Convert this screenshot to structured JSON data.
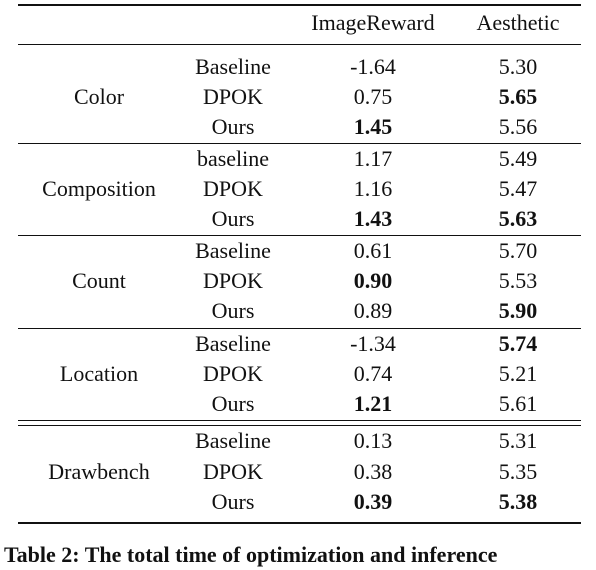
{
  "table": {
    "headers": [
      "",
      "",
      "ImageReward",
      "Aesthetic"
    ],
    "groups": [
      {
        "category": "Color",
        "rows": [
          {
            "method": "Baseline",
            "imagereward": "-1.64",
            "aesthetic": "5.30",
            "bold": []
          },
          {
            "method": "DPOK",
            "imagereward": "0.75",
            "aesthetic": "5.65",
            "bold": [
              "aesthetic"
            ]
          },
          {
            "method": "Ours",
            "imagereward": "1.45",
            "aesthetic": "5.56",
            "bold": [
              "imagereward"
            ]
          }
        ]
      },
      {
        "category": "Composition",
        "rows": [
          {
            "method": "baseline",
            "imagereward": "1.17",
            "aesthetic": "5.49",
            "bold": []
          },
          {
            "method": "DPOK",
            "imagereward": "1.16",
            "aesthetic": "5.47",
            "bold": []
          },
          {
            "method": "Ours",
            "imagereward": "1.43",
            "aesthetic": "5.63",
            "bold": [
              "imagereward",
              "aesthetic"
            ]
          }
        ]
      },
      {
        "category": "Count",
        "rows": [
          {
            "method": "Baseline",
            "imagereward": "0.61",
            "aesthetic": "5.70",
            "bold": []
          },
          {
            "method": "DPOK",
            "imagereward": "0.90",
            "aesthetic": "5.53",
            "bold": [
              "imagereward"
            ]
          },
          {
            "method": "Ours",
            "imagereward": "0.89",
            "aesthetic": "5.90",
            "bold": [
              "aesthetic"
            ]
          }
        ]
      },
      {
        "category": "Location",
        "rows": [
          {
            "method": "Baseline",
            "imagereward": "-1.34",
            "aesthetic": "5.74",
            "bold": [
              "aesthetic"
            ]
          },
          {
            "method": "DPOK",
            "imagereward": "0.74",
            "aesthetic": "5.21",
            "bold": []
          },
          {
            "method": "Ours",
            "imagereward": "1.21",
            "aesthetic": "5.61",
            "bold": [
              "imagereward"
            ]
          }
        ]
      },
      {
        "category": "Drawbench",
        "rows": [
          {
            "method": "Baseline",
            "imagereward": "0.13",
            "aesthetic": "5.31",
            "bold": []
          },
          {
            "method": "DPOK",
            "imagereward": "0.38",
            "aesthetic": "5.35",
            "bold": []
          },
          {
            "method": "Ours",
            "imagereward": "0.39",
            "aesthetic": "5.38",
            "bold": [
              "imagereward",
              "aesthetic"
            ]
          }
        ]
      }
    ]
  },
  "caption": "Table 2: The total time of optimization and inference"
}
